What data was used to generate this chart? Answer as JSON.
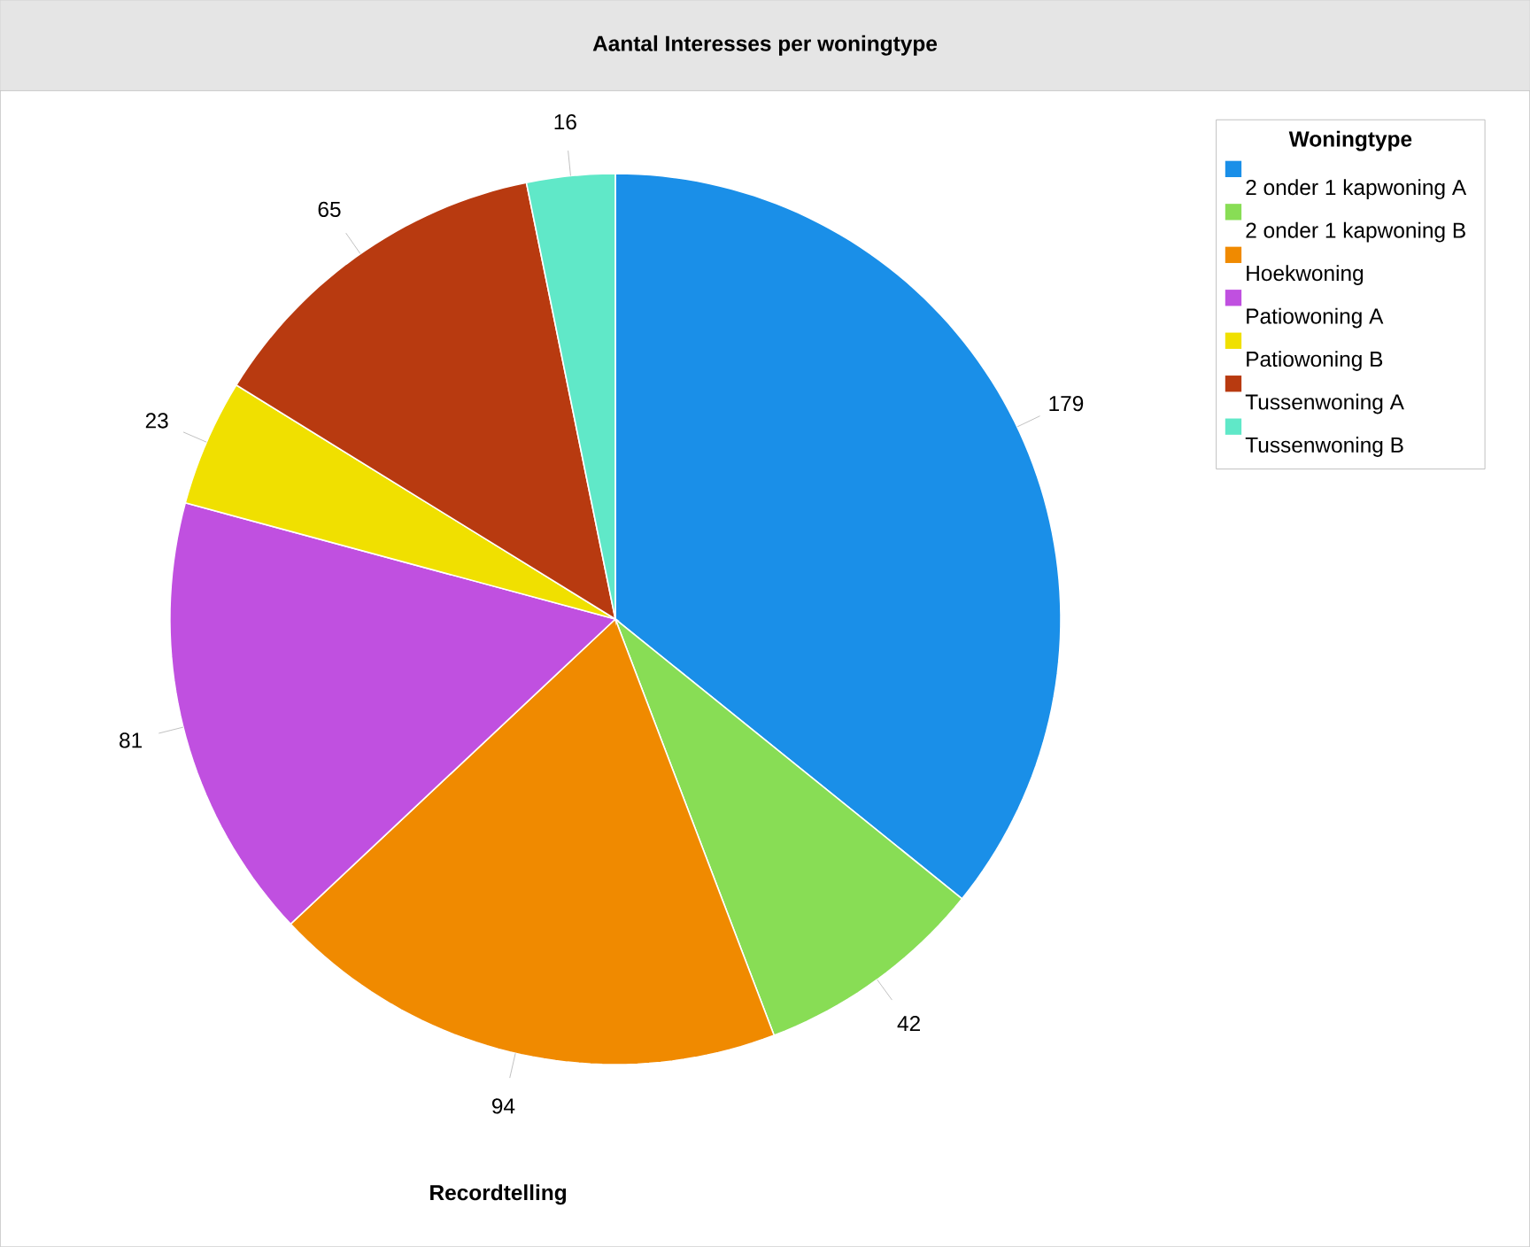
{
  "chart_data": {
    "type": "pie",
    "title": "Aantal Interesses per woningtype",
    "xlabel": "Recordtelling",
    "legend_title": "Woningtype",
    "categories": [
      "2 onder 1 kapwoning A",
      "2 onder 1 kapwoning B",
      "Hoekwoning",
      "Patiowoning A",
      "Patiowoning B",
      "Tussenwoning A",
      "Tussenwoning B"
    ],
    "values": [
      179,
      42,
      94,
      81,
      23,
      65,
      16
    ],
    "colors": [
      "#1a8fe8",
      "#88dd55",
      "#f08a00",
      "#c050e0",
      "#f0e000",
      "#b83a10",
      "#60e8c8"
    ],
    "data_labels": true,
    "legend": "top right"
  }
}
